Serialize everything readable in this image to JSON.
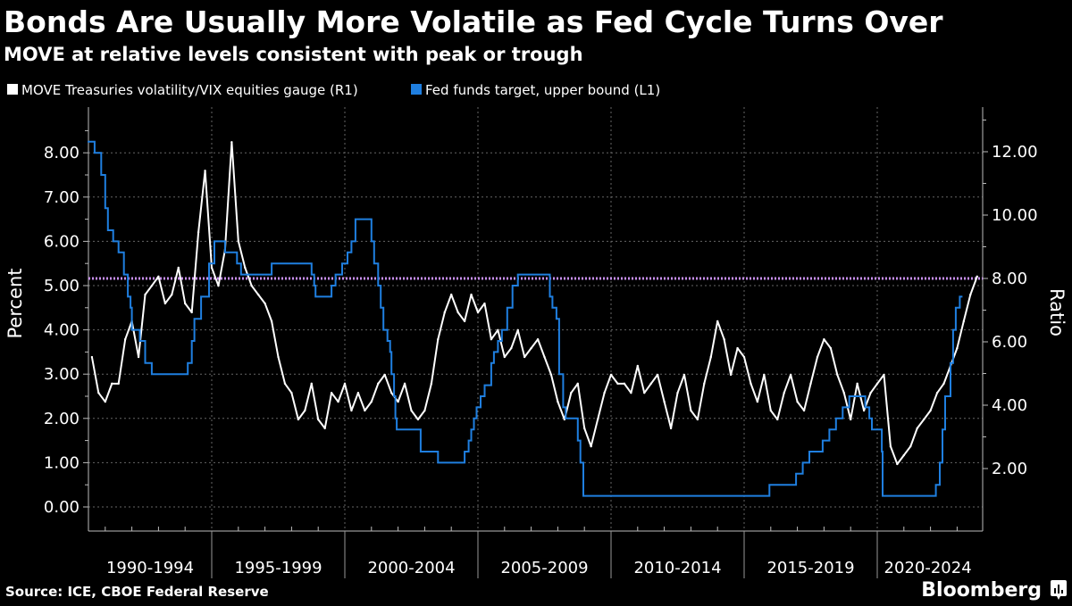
{
  "header": {
    "title": "Bonds Are Usually More Volatile as Fed Cycle Turns Over",
    "subtitle": "MOVE at relative levels consistent with peak or trough"
  },
  "footer": {
    "source": "Source: ICE, CBOE Federal Reserve",
    "brand": "Bloomberg"
  },
  "colors": {
    "background": "#000000",
    "ratio_series": "#ffffff",
    "fed_series": "#1f7fe0",
    "reference_line": "#c98ff0"
  },
  "chart_data": {
    "type": "line",
    "title": "Bonds Are Usually More Volatile as Fed Cycle Turns Over",
    "subtitle": "MOVE at relative levels consistent with peak or trough",
    "legend_placement": "top-left",
    "grid": true,
    "x_range": [
      1990.34,
      2023.2
    ],
    "x_bands": [
      {
        "label": "1990-1994",
        "start": 1990.34,
        "end": 1995
      },
      {
        "label": "1995-1999",
        "start": 1995,
        "end": 2000
      },
      {
        "label": "2000-2004",
        "start": 2000,
        "end": 2005
      },
      {
        "label": "2005-2009",
        "start": 2005,
        "end": 2010
      },
      {
        "label": "2010-2014",
        "start": 2010,
        "end": 2015
      },
      {
        "label": "2015-2019",
        "start": 2015,
        "end": 2020
      },
      {
        "label": "2020-2024",
        "start": 2020,
        "end": 2023.8
      }
    ],
    "left_axis": {
      "label": "Percent",
      "range": [
        -0.6,
        9.0
      ],
      "ticks": [
        "0.00",
        "1.00",
        "2.00",
        "3.00",
        "4.00",
        "5.00",
        "6.00",
        "7.00",
        "8.00"
      ],
      "tick_values": [
        0,
        1,
        2,
        3,
        4,
        5,
        6,
        7,
        8
      ]
    },
    "right_axis": {
      "label": "Ratio",
      "range": [
        0.2,
        13.6
      ],
      "ticks": [
        "2.00",
        "4.00",
        "6.00",
        "8.00",
        "10.00",
        "12.00"
      ],
      "tick_values": [
        2,
        4,
        6,
        8,
        10,
        12
      ]
    },
    "reference_line": {
      "axis": "right",
      "value": 8.0,
      "style": "dotted"
    },
    "series": [
      {
        "name": "MOVE Treasuries volatility/VIX equities gauge (R1)",
        "axis": "right",
        "x_start": 1990.5,
        "x_step": 0.25,
        "values": [
          5.52,
          4.39,
          4.11,
          4.68,
          4.68,
          6.08,
          6.65,
          5.52,
          7.49,
          7.77,
          8.06,
          7.21,
          7.49,
          8.34,
          7.21,
          6.93,
          9.46,
          11.4,
          8.34,
          7.77,
          8.9,
          12.3,
          9.18,
          8.34,
          7.77,
          7.49,
          7.21,
          6.65,
          5.52,
          4.68,
          4.39,
          3.55,
          3.83,
          4.68,
          3.55,
          3.27,
          4.39,
          4.11,
          4.68,
          3.83,
          4.39,
          3.83,
          4.11,
          4.68,
          4.96,
          4.39,
          4.11,
          4.68,
          3.83,
          3.55,
          3.83,
          4.68,
          6.08,
          6.93,
          7.49,
          6.93,
          6.65,
          7.49,
          6.93,
          7.21,
          6.08,
          6.37,
          5.52,
          5.8,
          6.37,
          5.52,
          5.8,
          6.08,
          5.52,
          4.96,
          4.11,
          3.55,
          4.39,
          4.68,
          3.27,
          2.7,
          3.55,
          4.39,
          4.96,
          4.68,
          4.68,
          4.39,
          5.24,
          4.39,
          4.68,
          4.96,
          4.11,
          3.27,
          4.39,
          4.96,
          3.83,
          3.55,
          4.68,
          5.52,
          6.65,
          6.08,
          4.96,
          5.8,
          5.52,
          4.68,
          4.11,
          4.96,
          3.83,
          3.55,
          4.39,
          4.96,
          4.11,
          3.83,
          4.68,
          5.52,
          6.08,
          5.8,
          4.96,
          4.39,
          3.55,
          4.68,
          3.83,
          4.39,
          4.68,
          4.96,
          2.7,
          2.14,
          2.42,
          2.7,
          3.27,
          3.55,
          3.83,
          4.39,
          4.68,
          5.24,
          5.8,
          6.65,
          7.49,
          8.06
        ]
      },
      {
        "name": "Fed funds target, upper bound (L1)",
        "axis": "left",
        "step": true,
        "points": [
          [
            1990.34,
            8.25
          ],
          [
            1990.6,
            8.0
          ],
          [
            1990.85,
            7.5
          ],
          [
            1991.0,
            6.75
          ],
          [
            1991.1,
            6.25
          ],
          [
            1991.3,
            6.0
          ],
          [
            1991.5,
            5.75
          ],
          [
            1991.7,
            5.25
          ],
          [
            1991.85,
            4.75
          ],
          [
            1991.95,
            4.5
          ],
          [
            1992.0,
            4.0
          ],
          [
            1992.3,
            3.75
          ],
          [
            1992.5,
            3.25
          ],
          [
            1992.75,
            3.0
          ],
          [
            1994.1,
            3.25
          ],
          [
            1994.25,
            3.75
          ],
          [
            1994.35,
            4.25
          ],
          [
            1994.6,
            4.75
          ],
          [
            1994.9,
            5.5
          ],
          [
            1995.1,
            6.0
          ],
          [
            1995.5,
            5.75
          ],
          [
            1995.95,
            5.5
          ],
          [
            1996.1,
            5.25
          ],
          [
            1997.25,
            5.5
          ],
          [
            1998.75,
            5.25
          ],
          [
            1998.85,
            5.0
          ],
          [
            1998.9,
            4.75
          ],
          [
            1999.5,
            5.0
          ],
          [
            1999.65,
            5.25
          ],
          [
            1999.9,
            5.5
          ],
          [
            2000.1,
            5.75
          ],
          [
            2000.25,
            6.0
          ],
          [
            2000.4,
            6.5
          ],
          [
            2001.0,
            6.0
          ],
          [
            2001.1,
            5.5
          ],
          [
            2001.25,
            5.0
          ],
          [
            2001.35,
            4.5
          ],
          [
            2001.45,
            4.0
          ],
          [
            2001.6,
            3.75
          ],
          [
            2001.7,
            3.5
          ],
          [
            2001.75,
            3.0
          ],
          [
            2001.85,
            2.5
          ],
          [
            2001.9,
            2.0
          ],
          [
            2001.95,
            1.75
          ],
          [
            2002.85,
            1.25
          ],
          [
            2003.5,
            1.0
          ],
          [
            2004.5,
            1.25
          ],
          [
            2004.65,
            1.5
          ],
          [
            2004.75,
            1.75
          ],
          [
            2004.85,
            2.0
          ],
          [
            2004.95,
            2.25
          ],
          [
            2005.1,
            2.5
          ],
          [
            2005.25,
            2.75
          ],
          [
            2005.5,
            3.25
          ],
          [
            2005.6,
            3.5
          ],
          [
            2005.75,
            3.75
          ],
          [
            2005.9,
            4.0
          ],
          [
            2006.1,
            4.5
          ],
          [
            2006.3,
            5.0
          ],
          [
            2006.5,
            5.25
          ],
          [
            2007.7,
            4.75
          ],
          [
            2007.8,
            4.5
          ],
          [
            2007.95,
            4.25
          ],
          [
            2008.05,
            3.0
          ],
          [
            2008.2,
            2.25
          ],
          [
            2008.3,
            2.0
          ],
          [
            2008.75,
            1.5
          ],
          [
            2008.85,
            1.0
          ],
          [
            2008.96,
            0.25
          ],
          [
            2015.95,
            0.5
          ],
          [
            2016.95,
            0.75
          ],
          [
            2017.2,
            1.0
          ],
          [
            2017.45,
            1.25
          ],
          [
            2017.95,
            1.5
          ],
          [
            2018.2,
            1.75
          ],
          [
            2018.45,
            2.0
          ],
          [
            2018.7,
            2.25
          ],
          [
            2018.95,
            2.5
          ],
          [
            2019.55,
            2.25
          ],
          [
            2019.7,
            2.0
          ],
          [
            2019.8,
            1.75
          ],
          [
            2020.17,
            1.25
          ],
          [
            2020.2,
            0.25
          ],
          [
            2022.2,
            0.5
          ],
          [
            2022.35,
            1.0
          ],
          [
            2022.45,
            1.75
          ],
          [
            2022.55,
            2.5
          ],
          [
            2022.75,
            3.25
          ],
          [
            2022.85,
            4.0
          ],
          [
            2022.95,
            4.5
          ],
          [
            2023.1,
            4.75
          ],
          [
            2023.2,
            4.75
          ]
        ]
      }
    ]
  }
}
